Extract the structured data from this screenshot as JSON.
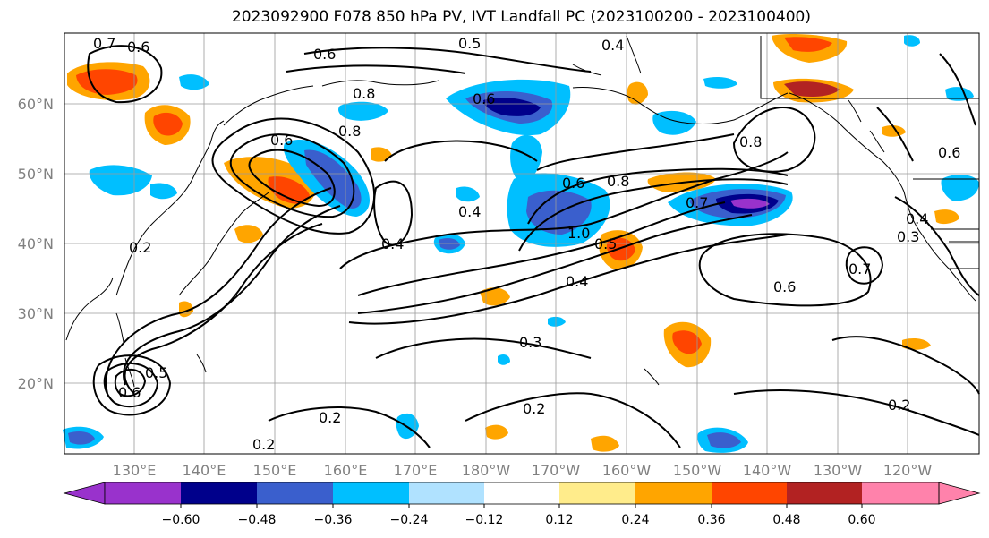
{
  "title": "2023092900 F078 850 hPa PV, IVT Landfall PC (2023100200 - 2023100400)",
  "map": {
    "lat_labels": [
      "60°N",
      "50°N",
      "40°N",
      "30°N",
      "20°N"
    ],
    "lon_labels": [
      "130°E",
      "140°E",
      "150°E",
      "160°E",
      "170°E",
      "180°W",
      "170°W",
      "160°W",
      "150°W",
      "140°W",
      "130°W",
      "120°W"
    ],
    "contour_labels": [
      "0.7",
      "0.6",
      "0.6",
      "0.5",
      "0.4",
      "0.8",
      "0.6",
      "0.8",
      "0.6",
      "0.4",
      "0.4",
      "0.6",
      "0.8",
      "0.7",
      "1.0",
      "0.5",
      "0.4",
      "0.3",
      "0.2",
      "0.2",
      "0.2",
      "0.2",
      "0.6",
      "0.4",
      "0.3",
      "0.8",
      "0.7",
      "0.6",
      "0.2",
      "0.6",
      "0.5"
    ]
  },
  "colorbar": {
    "ticks": [
      "−0.60",
      "−0.48",
      "−0.36",
      "−0.24",
      "−0.12",
      "0.12",
      "0.24",
      "0.36",
      "0.48",
      "0.60"
    ],
    "colors": [
      "#9932cc",
      "#00008b",
      "#3a5fcd",
      "#00bfff",
      "#b0e2ff",
      "#ffffff",
      "#ffec8b",
      "#ffa500",
      "#ff4500",
      "#b22222",
      "#ff82ab"
    ]
  }
}
